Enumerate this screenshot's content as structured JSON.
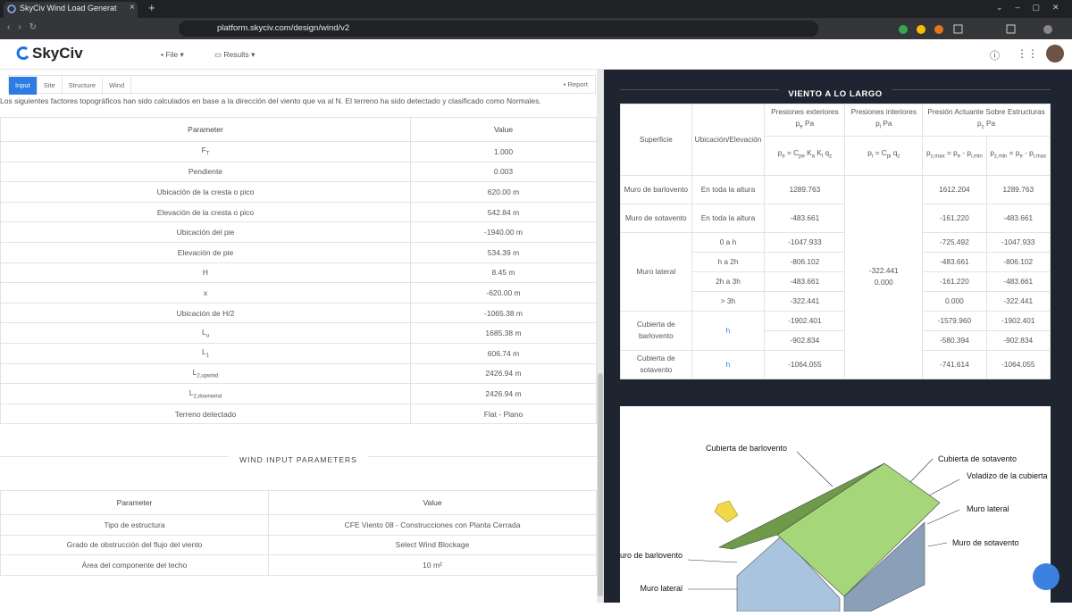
{
  "browser": {
    "tab_title": "SkyCiv Wind Load Generat",
    "url": "platform.skyciv.com/design/wind/v2"
  },
  "header": {
    "logo": "SkyCiv",
    "menu": [
      "File",
      "Results"
    ]
  },
  "tabs": [
    "Input",
    "Site",
    "Structure",
    "Wind"
  ],
  "report": "Report",
  "intro": "Los siguientes factores topográficos han sido calculados en base a la dirección del viento que va al N. El terreno ha sido detectado y clasificado como Normales.",
  "topo_table": {
    "columns": [
      "Parameter",
      "Value"
    ],
    "rows": [
      [
        [
          "F",
          "T"
        ],
        "1.000"
      ],
      [
        "Pendiente",
        "0.003"
      ],
      [
        "Ubicación de la cresta o pico",
        "620.00 m"
      ],
      [
        "Elevación de la cresta o pico",
        "542.84 m"
      ],
      [
        "Ubicación del pie",
        "-1940.00 m"
      ],
      [
        "Elevación de pie",
        "534.39 m"
      ],
      [
        "H",
        "8.45 m"
      ],
      [
        "x",
        "-620.00 m"
      ],
      [
        "Ubicación de H/2",
        "-1065.38 m"
      ],
      [
        [
          "L",
          "u"
        ],
        "1685.38 m"
      ],
      [
        [
          "L",
          "1"
        ],
        "606.74 m"
      ],
      [
        [
          "L",
          "2,upwind"
        ],
        "2426.94 m"
      ],
      [
        [
          "L",
          "2,downwind"
        ],
        "2426.94 m"
      ],
      [
        "Terreno detectado",
        "Flat - Plano"
      ]
    ]
  },
  "wind_input": {
    "title": "WIND INPUT PARAMETERS",
    "columns": [
      "Parameter",
      "Value"
    ],
    "rows": [
      [
        "Tipo de estructura",
        "CFE Viento 08 - Construcciones con Planta Cerrada"
      ],
      [
        "Grado de obstrucción del flujo del viento",
        "Select Wind Blockage"
      ],
      [
        "Área del componente del techo",
        "10 m²"
      ]
    ]
  },
  "wind_table": {
    "title": "VIENTO A LO LARGO",
    "header": {
      "superficie": "Superficie",
      "ubicacion": "Ubicación/Elevación",
      "exterior": [
        "Presiones exteriores p",
        "e",
        " Pa"
      ],
      "interior": [
        "Presiones interiores p",
        "i",
        " Pa"
      ],
      "actuante": [
        "Presión Actuante Sobre Estructuras p",
        "z",
        " Pa"
      ],
      "f_exterior": [
        "p",
        "e",
        " = C",
        "pe",
        " K",
        "a",
        " K",
        "l",
        " q",
        "z"
      ],
      "f_interior": [
        "p",
        "i",
        " = C",
        "pi",
        " q",
        "z"
      ],
      "f_max": [
        "p",
        "z,max",
        " = p",
        "e",
        " - p",
        "i,min"
      ],
      "f_min": [
        "p",
        "z,min",
        " = p",
        "e",
        " - p",
        "i,max"
      ]
    },
    "interior_values": [
      "-322.441",
      "0.000"
    ],
    "groups": [
      {
        "superficie": "Muro de barlovento",
        "rows": [
          {
            "ubicacion": "En toda la altura",
            "values": [
              "1289.763",
              "1612.204",
              "1289.763"
            ]
          }
        ]
      },
      {
        "superficie": "Muro de sotavento",
        "rows": [
          {
            "ubicacion": "En toda la altura",
            "values": [
              "-483.661",
              "-161.220",
              "-483.661"
            ]
          }
        ]
      },
      {
        "superficie": "Muro lateral",
        "rows": [
          {
            "ubicacion": "0 a h",
            "values": [
              "-1047.933",
              "-725.492",
              "-1047.933"
            ]
          },
          {
            "ubicacion": "h a 2h",
            "values": [
              "-806.102",
              "-483.661",
              "-806.102"
            ]
          },
          {
            "ubicacion": "2h a 3h",
            "values": [
              "-483.661",
              "-161.220",
              "-483.661"
            ]
          },
          {
            "ubicacion": "> 3h",
            "values": [
              "-322.441",
              "0.000",
              "-322.441"
            ]
          }
        ]
      },
      {
        "superficie": "Cubierta de barlovento",
        "ubicacion": "h",
        "rows": [
          {
            "values": [
              "-1902.401",
              "-1579.960",
              "-1902.401"
            ]
          },
          {
            "values": [
              "-902.834",
              "-580.394",
              "-902.834"
            ]
          }
        ]
      },
      {
        "superficie": "Cubierta de sotavento",
        "ubicacion": "h",
        "rows": [
          {
            "values": [
              "-1064.055",
              "-741.614",
              "-1064.055"
            ]
          }
        ]
      }
    ]
  },
  "diagram": {
    "labels": [
      "Cubierta de barlovento",
      "Cubierta de sotavento",
      "Voladizo de la cubierta",
      "Muro lateral",
      "Muro de sotavento",
      "Muro de barlovento",
      "Muro lateral"
    ]
  }
}
